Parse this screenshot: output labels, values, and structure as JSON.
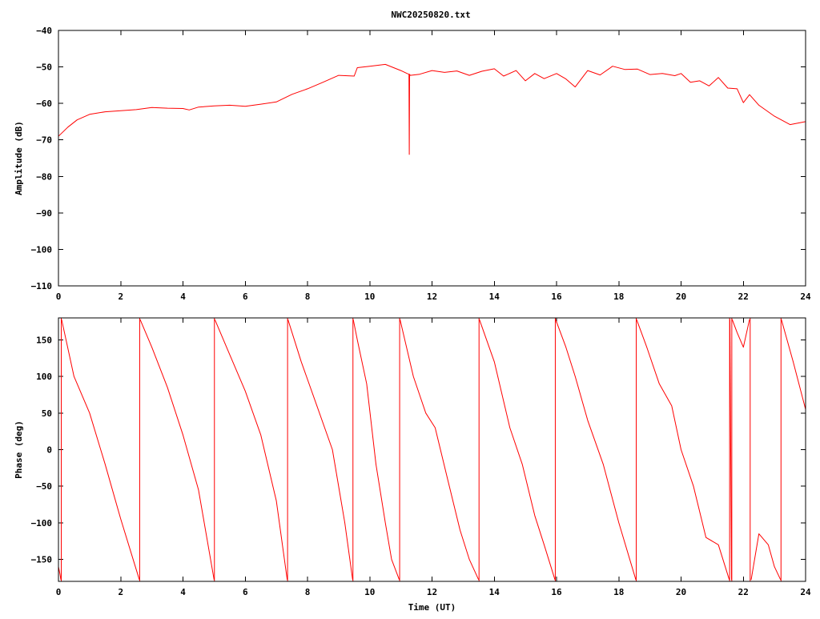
{
  "title": "NWC20250820.txt",
  "colors": {
    "series": "#ff0000",
    "axes": "#000000",
    "background": "#ffffff"
  },
  "chart_data": [
    {
      "type": "line",
      "title": "NWC20250820.txt",
      "xlabel": "",
      "ylabel": "Amplitude (dB)",
      "xlim": [
        0,
        24
      ],
      "ylim": [
        -110,
        -40
      ],
      "xticks": [
        "0",
        "2",
        "4",
        "6",
        "8",
        "10",
        "12",
        "14",
        "16",
        "18",
        "20",
        "22",
        "24"
      ],
      "yticks": [
        "-110",
        "-100",
        "-90",
        "-80",
        "-70",
        "-60",
        "-50",
        "-40"
      ],
      "grid": false,
      "legend": "none",
      "series": [
        {
          "x": [
            0,
            0.3,
            0.6,
            1.0,
            1.5,
            2.0,
            2.5,
            3.0,
            3.5,
            4.0,
            4.2,
            4.5,
            5.0,
            5.5,
            6.0,
            6.5,
            7.0,
            7.5,
            8.0,
            8.5,
            9.0,
            9.5,
            9.6,
            10.0,
            10.5,
            11.0,
            11.2,
            11.26,
            11.27,
            11.28,
            11.3,
            11.6,
            12.0,
            12.4,
            12.8,
            13.2,
            13.6,
            14.0,
            14.3,
            14.7,
            15.0,
            15.3,
            15.6,
            16.0,
            16.3,
            16.6,
            17.0,
            17.4,
            17.8,
            18.2,
            18.6,
            19.0,
            19.4,
            19.8,
            20.0,
            20.3,
            20.6,
            20.9,
            21.2,
            21.5,
            21.8,
            22.0,
            22.2,
            22.5,
            23.0,
            23.5,
            24.0
          ],
          "y": [
            -69,
            -66.5,
            -64.5,
            -63,
            -62.3,
            -62,
            -61.7,
            -61.1,
            -61.3,
            -61.4,
            -61.8,
            -61,
            -60.7,
            -60.5,
            -60.8,
            -60.2,
            -59.6,
            -57.5,
            -56,
            -54.2,
            -52.3,
            -52.5,
            -50.2,
            -49.8,
            -49.3,
            -51,
            -51.8,
            -52,
            -74,
            -52,
            -52.3,
            -52,
            -51,
            -51.5,
            -51.1,
            -52.3,
            -51.2,
            -50.5,
            -52.5,
            -51,
            -53.8,
            -51.8,
            -53.2,
            -51.8,
            -53.3,
            -55.5,
            -51,
            -52.2,
            -49.8,
            -50.7,
            -50.6,
            -52.1,
            -51.8,
            -52.4,
            -51.8,
            -54.2,
            -53.8,
            -55.2,
            -52.9,
            -55.8,
            -56,
            -59.8,
            -57.6,
            -60.5,
            -63.5,
            -65.8,
            -65
          ]
        }
      ]
    },
    {
      "type": "line",
      "title": "",
      "xlabel": "Time (UT)",
      "ylabel": "Phase (deg)",
      "xlim": [
        0,
        24
      ],
      "ylim": [
        -180,
        180
      ],
      "xticks": [
        "0",
        "2",
        "4",
        "6",
        "8",
        "10",
        "12",
        "14",
        "16",
        "18",
        "20",
        "22",
        "24"
      ],
      "yticks": [
        "-150",
        "-100",
        "-50",
        "0",
        "50",
        "100",
        "150"
      ],
      "grid": false,
      "legend": "none",
      "series": [
        {
          "segments": [
            {
              "x": [
                0,
                0.05,
                0.08
              ],
              "y": [
                -160,
                -170,
                -178
              ]
            },
            {
              "x": [
                0.1,
                0.5,
                1.0,
                1.5,
                2.0,
                2.6
              ],
              "y": [
                178,
                100,
                50,
                -20,
                -95,
                -178
              ]
            },
            {
              "x": [
                2.62,
                3.0,
                3.5,
                4.0,
                4.5,
                5.0
              ],
              "y": [
                178,
                140,
                85,
                20,
                -55,
                -178
              ]
            },
            {
              "x": [
                5.02,
                5.5,
                6.0,
                6.5,
                7.0,
                7.35
              ],
              "y": [
                178,
                130,
                80,
                20,
                -70,
                -178
              ]
            },
            {
              "x": [
                7.37,
                7.8,
                8.3,
                8.8,
                9.2,
                9.45
              ],
              "y": [
                178,
                120,
                60,
                0,
                -100,
                -178
              ]
            },
            {
              "x": [
                9.47,
                9.6,
                9.9,
                10.2,
                10.5,
                10.7,
                10.95
              ],
              "y": [
                178,
                150,
                90,
                -20,
                -100,
                -150,
                -178
              ]
            },
            {
              "x": [
                10.97,
                11.4,
                11.8,
                12.1,
                12.5,
                12.9,
                13.2,
                13.5
              ],
              "y": [
                178,
                100,
                50,
                30,
                -40,
                -110,
                -150,
                -178
              ]
            },
            {
              "x": [
                13.52,
                14.0,
                14.5,
                14.9,
                15.3,
                15.6,
                15.95
              ],
              "y": [
                178,
                120,
                30,
                -20,
                -90,
                -130,
                -178
              ]
            },
            {
              "x": [
                15.97,
                16.3,
                16.6,
                17.0,
                17.5,
                18.0,
                18.55
              ],
              "y": [
                178,
                140,
                100,
                40,
                -20,
                -100,
                -178
              ]
            },
            {
              "x": [
                18.57,
                18.9,
                19.3,
                19.7,
                20.0,
                20.4,
                20.8,
                21.2,
                21.55
              ],
              "y": [
                178,
                140,
                90,
                60,
                0,
                -50,
                -120,
                -130,
                -178
              ]
            },
            {
              "x": [
                21.57,
                21.62
              ],
              "y": [
                178,
                -178
              ]
            },
            {
              "x": [
                21.64,
                21.8,
                22.0,
                22.2
              ],
              "y": [
                178,
                160,
                140,
                178
              ]
            },
            {
              "x": [
                22.25,
                22.5,
                22.8,
                23.0,
                23.2
              ],
              "y": [
                -178,
                -115,
                -130,
                -160,
                -178
              ]
            },
            {
              "x": [
                23.22,
                23.6,
                24.0
              ],
              "y": [
                178,
                120,
                55
              ]
            }
          ],
          "jumps": [
            0.09,
            2.61,
            5.01,
            7.36,
            9.46,
            10.96,
            13.51,
            15.96,
            18.56,
            21.56,
            21.63,
            22.22,
            23.21
          ]
        }
      ]
    }
  ]
}
